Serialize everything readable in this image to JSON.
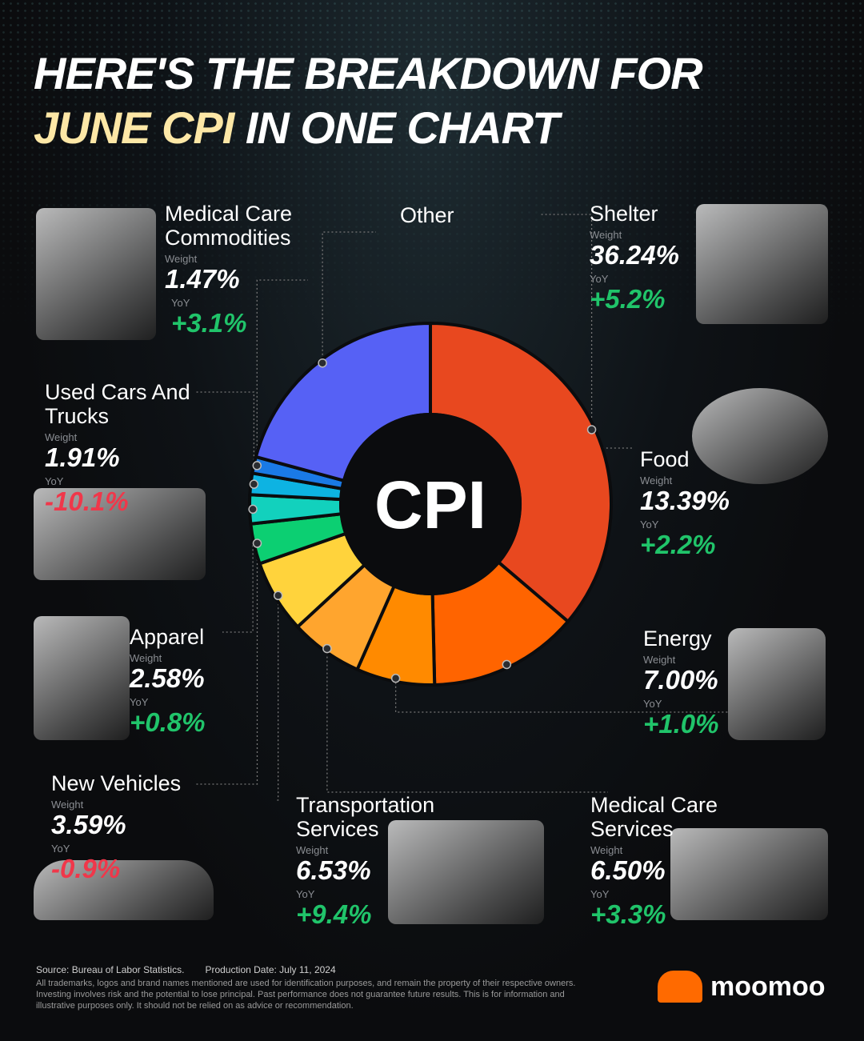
{
  "title": {
    "line1": "HERE'S THE BREAKDOWN FOR",
    "highlight": "JUNE CPI",
    "line2_rest": " IN ONE CHART"
  },
  "center_label": "CPI",
  "weight_label": "Weight",
  "yoy_label": "YoY",
  "chart_data": {
    "type": "pie",
    "subtype": "donut",
    "center_text": "CPI",
    "categories": [
      "Shelter",
      "Food",
      "Energy",
      "Medical Care Services",
      "Transportation Services",
      "New Vehicles",
      "Apparel",
      "Used Cars And Trucks",
      "Medical Care Commodities",
      "Other"
    ],
    "weights": [
      36.24,
      13.39,
      7.0,
      6.5,
      6.53,
      3.59,
      2.58,
      1.91,
      1.47,
      null
    ],
    "weight_labels": [
      "36.24%",
      "13.39%",
      "7.00%",
      "6.50%",
      "6.53%",
      "3.59%",
      "2.58%",
      "1.91%",
      "1.47%",
      null
    ],
    "yoy": [
      "+5.2%",
      "+2.2%",
      "+1.0%",
      "+3.3%",
      "+9.4%",
      "-0.9%",
      "+0.8%",
      "-10.1%",
      "+3.1%",
      null
    ],
    "colors": [
      "#e8481f",
      "#ff6400",
      "#ff8a00",
      "#ffa52e",
      "#ffd33c",
      "#0ccf72",
      "#12d1bd",
      "#0db3e2",
      "#1a7ae6",
      "#5661f5"
    ],
    "positive_color": "#20c46a",
    "negative_color": "#f0374a"
  },
  "footer": {
    "source": "Source: Bureau of Labor Statistics.",
    "production_date": "Production Date: July 11, 2024",
    "disclaimer": "All trademarks, logos and brand names mentioned are used for identification purposes, and remain the property of their respective owners. Investing involves risk and the potential to lose principal. Past performance does not guarantee future results. This is for information and illustrative purposes only. It should not be relied on as advice or recommendation."
  },
  "brand": {
    "name": "moomoo",
    "color": "#ff6a00"
  }
}
